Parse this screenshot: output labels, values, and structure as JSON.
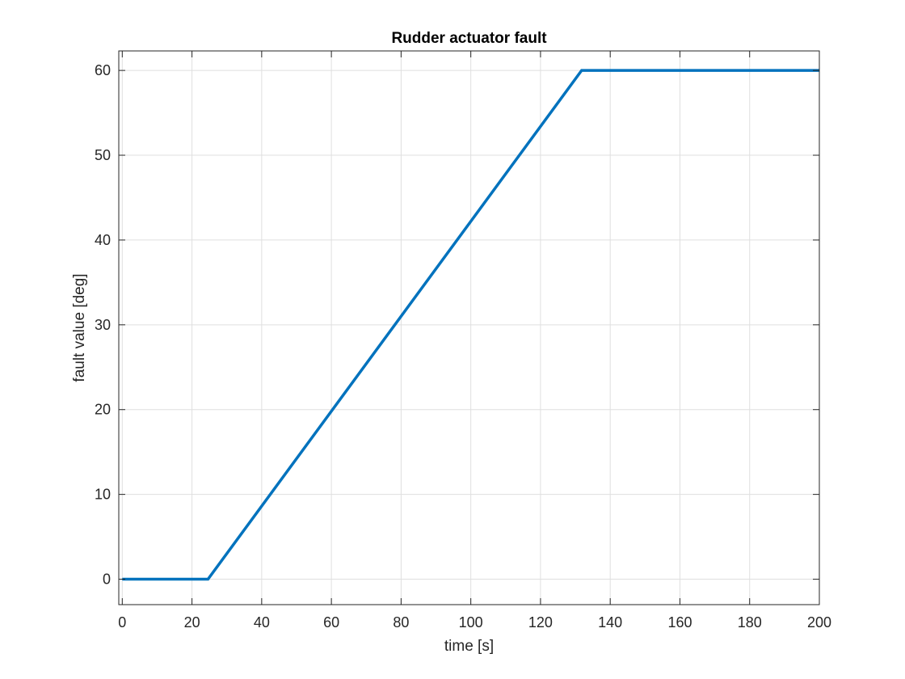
{
  "chart_data": {
    "type": "line",
    "title": "Rudder actuator fault",
    "xlabel": "time [s]",
    "ylabel": "fault value [deg]",
    "xlim": [
      -1,
      200
    ],
    "ylim": [
      -3,
      62.3
    ],
    "xticks": [
      0,
      20,
      40,
      60,
      80,
      100,
      120,
      140,
      160,
      180,
      200
    ],
    "yticks": [
      0,
      10,
      20,
      30,
      40,
      50,
      60
    ],
    "xtick_labels": [
      "0",
      "20",
      "40",
      "60",
      "80",
      "100",
      "120",
      "140",
      "160",
      "180",
      "200"
    ],
    "ytick_labels": [
      "0",
      "10",
      "20",
      "30",
      "40",
      "50",
      "60"
    ],
    "grid": true,
    "series": [
      {
        "color": "#0072BD",
        "x": [
          0,
          24.6,
          131.8,
          200
        ],
        "y": [
          0,
          0,
          60,
          60
        ]
      }
    ]
  }
}
